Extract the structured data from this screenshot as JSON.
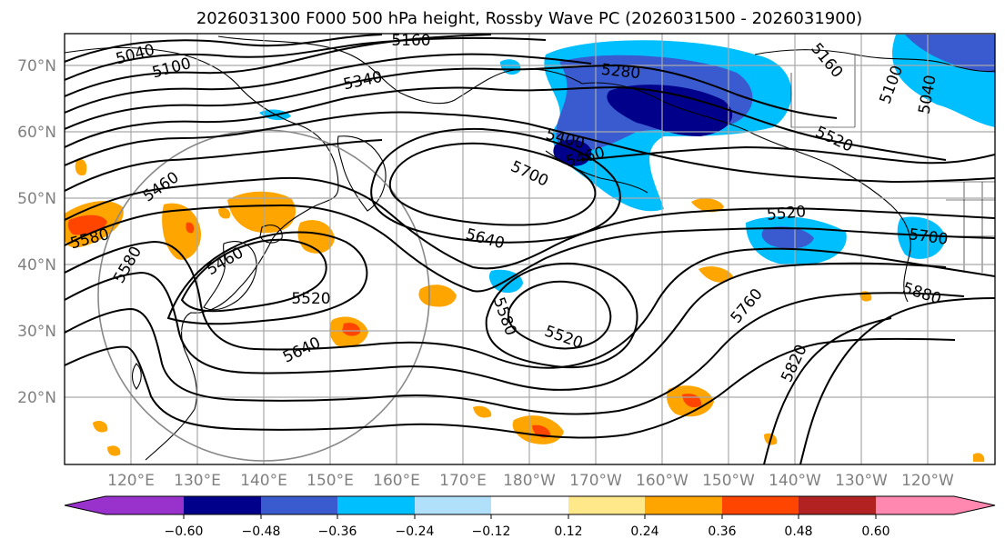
{
  "title": "2026031300 F000 500 hPa height, Rossby Wave PC (2026031500 - 2026031900)",
  "colors": {
    "neg_060": "#9932cc",
    "neg_048": "#00008b",
    "neg_036": "#3a5bd0",
    "neg_024": "#00bfff",
    "neg_012": "#b0e0fa",
    "neutral": "#ffffff",
    "pos_012": "#ffe88a",
    "pos_024": "#ffa500",
    "pos_036": "#ff4500",
    "pos_048": "#b22222",
    "pos_060": "#ff88b0"
  },
  "latitude_labels": [
    "70°N",
    "60°N",
    "50°N",
    "40°N",
    "30°N",
    "20°N"
  ],
  "longitude_labels": [
    "120°E",
    "130°E",
    "140°E",
    "150°E",
    "160°E",
    "170°E",
    "180°W",
    "170°W",
    "160°W",
    "150°W",
    "140°W",
    "130°W",
    "120°W"
  ],
  "contour_labels": [
    "5160",
    "5040",
    "5100",
    "5340",
    "5280",
    "5160",
    "5100",
    "5040",
    "5400",
    "5700",
    "5460",
    "5580",
    "5640",
    "5460",
    "5520",
    "5520",
    "5580",
    "5520",
    "5640",
    "5760",
    "5700",
    "5880",
    "5820",
    "5580",
    "5460",
    "5520"
  ],
  "colorbar": {
    "ticks": [
      "−0.60",
      "−0.48",
      "−0.36",
      "−0.24",
      "−0.12",
      "0.12",
      "0.24",
      "0.36",
      "0.48",
      "0.60"
    ],
    "bins": [
      "#9932cc",
      "#00008b",
      "#3a5bd0",
      "#00bfff",
      "#b0e0fa",
      "#ffffff",
      "#ffe88a",
      "#ffa500",
      "#ff4500",
      "#b22222",
      "#ff88b0"
    ]
  }
}
